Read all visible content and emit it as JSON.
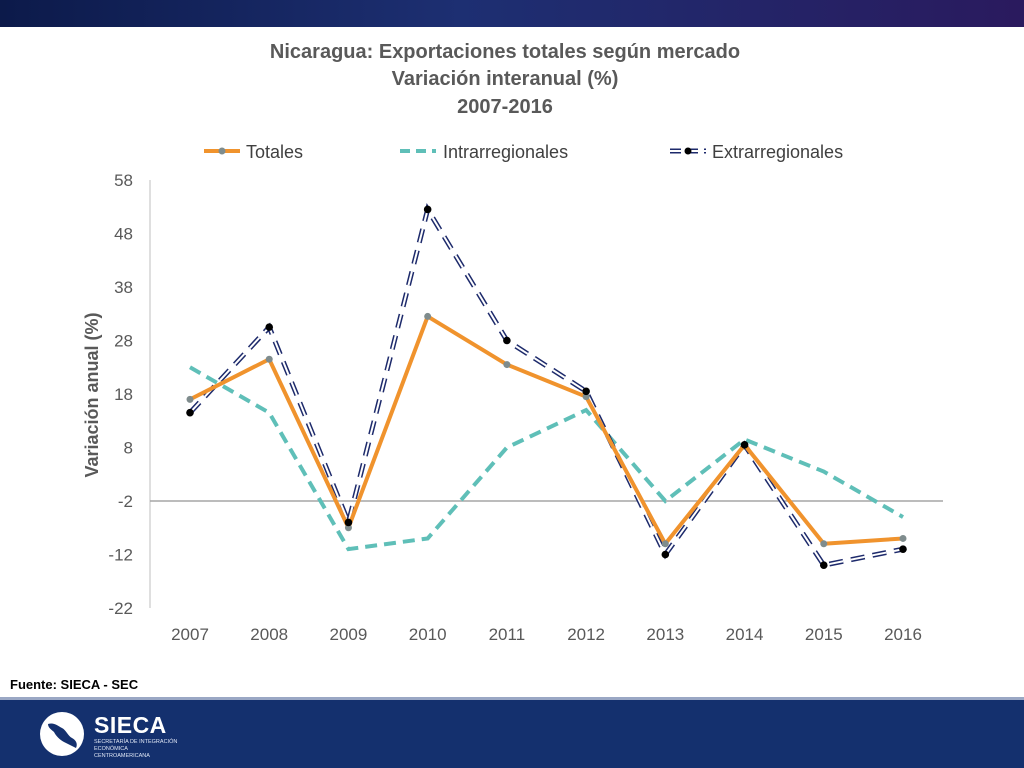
{
  "chart_data": {
    "type": "line",
    "title": [
      "Nicaragua: Exportaciones totales según mercado",
      "Variación interanual (%)",
      "2007-2016"
    ],
    "xlabel": "",
    "ylabel": "Variación anual (%)",
    "categories": [
      "2007",
      "2008",
      "2009",
      "2010",
      "2011",
      "2012",
      "2013",
      "2014",
      "2015",
      "2016"
    ],
    "ylim": [
      -22,
      58
    ],
    "yticks": [
      58,
      48,
      38,
      28,
      18,
      8,
      -2,
      -12,
      -22
    ],
    "yticks_labels": [
      "58",
      "48",
      "38",
      "28",
      "18",
      "8",
      "-2",
      "-12",
      "-22"
    ],
    "reference_line_y": -2,
    "legend_position": "top",
    "grid": false,
    "series": [
      {
        "name": "Totales",
        "style": "solid",
        "color": "#f0932d",
        "marker_color": "#7f8c8d",
        "values": [
          17.0,
          24.5,
          -7.0,
          32.5,
          23.5,
          17.5,
          -10.0,
          8.5,
          -10.0,
          -9.0
        ]
      },
      {
        "name": "Intrarregionales",
        "style": "dashed",
        "color": "#5fbfb8",
        "marker_color": null,
        "values": [
          23.0,
          14.5,
          -11.0,
          -9.0,
          8.0,
          15.0,
          -2.0,
          9.5,
          3.5,
          -5.0
        ]
      },
      {
        "name": "Extrarregionales",
        "style": "dashed-outline",
        "color": "#1d2a6b",
        "marker_color": "#000000",
        "values": [
          14.5,
          30.5,
          -6.0,
          52.5,
          28.0,
          18.5,
          -12.0,
          8.5,
          -14.0,
          -11.0
        ]
      }
    ]
  },
  "footer": {
    "source": "Fuente: SIECA - SEC",
    "logo_name": "SIECA",
    "logo_subtitle": "SECRETARÍA DE INTEGRACIÓN ECONÓMICA CENTROAMERICANA"
  }
}
